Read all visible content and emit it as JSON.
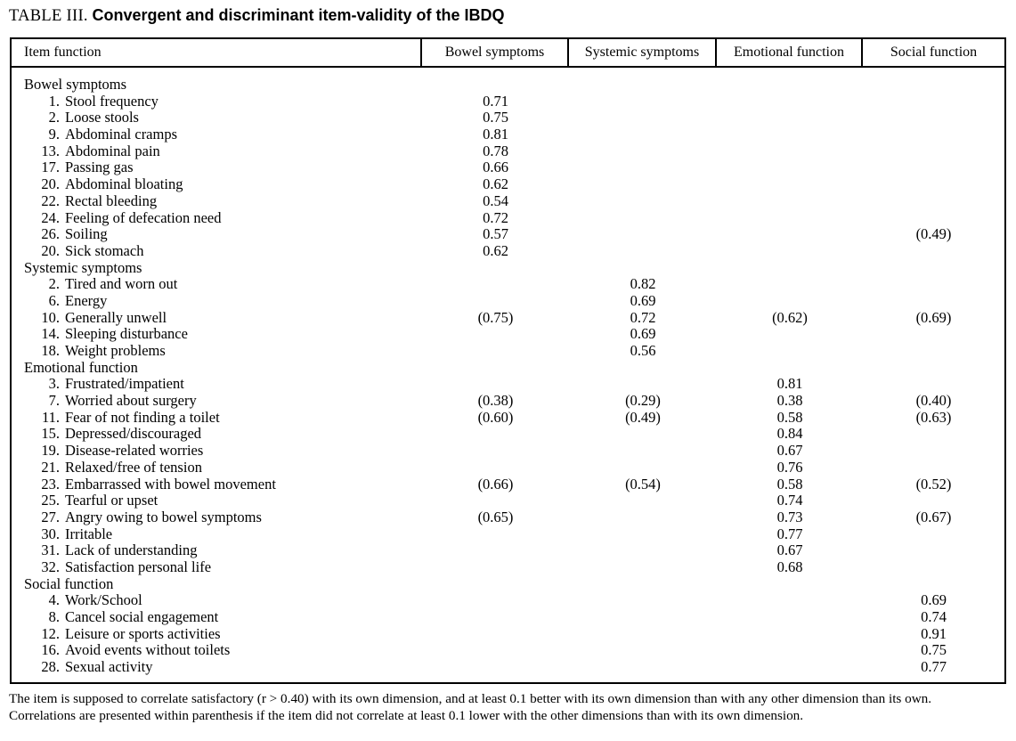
{
  "title": {
    "prefix": "TABLE III.",
    "main": "Convergent and discriminant item-validity of the IBDQ"
  },
  "table": {
    "columns": [
      "Item function",
      "Bowel symptoms",
      "Systemic symptoms",
      "Emotional function",
      "Social function"
    ],
    "rows": [
      {
        "type": "section",
        "label": "Bowel symptoms",
        "values": [
          "",
          "",
          "",
          ""
        ]
      },
      {
        "type": "item",
        "num": "1.",
        "label": "Stool frequency",
        "values": [
          "0.71",
          "",
          "",
          ""
        ]
      },
      {
        "type": "item",
        "num": "2.",
        "label": "Loose stools",
        "values": [
          "0.75",
          "",
          "",
          ""
        ]
      },
      {
        "type": "item",
        "num": "9.",
        "label": "Abdominal cramps",
        "values": [
          "0.81",
          "",
          "",
          ""
        ]
      },
      {
        "type": "item",
        "num": "13.",
        "label": "Abdominal pain",
        "values": [
          "0.78",
          "",
          "",
          ""
        ]
      },
      {
        "type": "item",
        "num": "17.",
        "label": "Passing gas",
        "values": [
          "0.66",
          "",
          "",
          ""
        ]
      },
      {
        "type": "item",
        "num": "20.",
        "label": "Abdominal bloating",
        "values": [
          "0.62",
          "",
          "",
          ""
        ]
      },
      {
        "type": "item",
        "num": "22.",
        "label": "Rectal bleeding",
        "values": [
          "0.54",
          "",
          "",
          ""
        ]
      },
      {
        "type": "item",
        "num": "24.",
        "label": "Feeling of defecation need",
        "values": [
          "0.72",
          "",
          "",
          ""
        ]
      },
      {
        "type": "item",
        "num": "26.",
        "label": "Soiling",
        "values": [
          "0.57",
          "",
          "",
          "(0.49)"
        ]
      },
      {
        "type": "item",
        "num": "20.",
        "label": "Sick stomach",
        "values": [
          "0.62",
          "",
          "",
          ""
        ]
      },
      {
        "type": "section",
        "label": "Systemic symptoms",
        "values": [
          "",
          "",
          "",
          ""
        ]
      },
      {
        "type": "item",
        "num": "2.",
        "label": "Tired and worn out",
        "values": [
          "",
          "0.82",
          "",
          ""
        ]
      },
      {
        "type": "item",
        "num": "6.",
        "label": "Energy",
        "values": [
          "",
          "0.69",
          "",
          ""
        ]
      },
      {
        "type": "item",
        "num": "10.",
        "label": "Generally unwell",
        "values": [
          "(0.75)",
          "0.72",
          "(0.62)",
          "(0.69)"
        ]
      },
      {
        "type": "item",
        "num": "14.",
        "label": "Sleeping disturbance",
        "values": [
          "",
          "0.69",
          "",
          ""
        ]
      },
      {
        "type": "item",
        "num": "18.",
        "label": "Weight problems",
        "values": [
          "",
          "0.56",
          "",
          ""
        ]
      },
      {
        "type": "section",
        "label": "Emotional function",
        "values": [
          "",
          "",
          "",
          ""
        ]
      },
      {
        "type": "item",
        "num": "3.",
        "label": "Frustrated/impatient",
        "values": [
          "",
          "",
          "0.81",
          ""
        ]
      },
      {
        "type": "item",
        "num": "7.",
        "label": "Worried about surgery",
        "values": [
          "(0.38)",
          "(0.29)",
          "0.38",
          "(0.40)"
        ]
      },
      {
        "type": "item",
        "num": "11.",
        "label": "Fear of not finding a toilet",
        "values": [
          "(0.60)",
          "(0.49)",
          "0.58",
          "(0.63)"
        ]
      },
      {
        "type": "item",
        "num": "15.",
        "label": "Depressed/discouraged",
        "values": [
          "",
          "",
          "0.84",
          ""
        ]
      },
      {
        "type": "item",
        "num": "19.",
        "label": "Disease-related worries",
        "values": [
          "",
          "",
          "0.67",
          ""
        ]
      },
      {
        "type": "item",
        "num": "21.",
        "label": "Relaxed/free of tension",
        "values": [
          "",
          "",
          "0.76",
          ""
        ]
      },
      {
        "type": "item",
        "num": "23.",
        "label": "Embarrassed with bowel movement",
        "values": [
          "(0.66)",
          "(0.54)",
          "0.58",
          "(0.52)"
        ]
      },
      {
        "type": "item",
        "num": "25.",
        "label": "Tearful or upset",
        "values": [
          "",
          "",
          "0.74",
          ""
        ]
      },
      {
        "type": "item",
        "num": "27.",
        "label": "Angry owing to bowel symptoms",
        "values": [
          "(0.65)",
          "",
          "0.73",
          "(0.67)"
        ]
      },
      {
        "type": "item",
        "num": "30.",
        "label": "Irritable",
        "values": [
          "",
          "",
          "0.77",
          ""
        ]
      },
      {
        "type": "item",
        "num": "31.",
        "label": "Lack of understanding",
        "values": [
          "",
          "",
          "0.67",
          ""
        ]
      },
      {
        "type": "item",
        "num": "32.",
        "label": "Satisfaction personal life",
        "values": [
          "",
          "",
          "0.68",
          ""
        ]
      },
      {
        "type": "section",
        "label": "Social function",
        "values": [
          "",
          "",
          "",
          ""
        ]
      },
      {
        "type": "item",
        "num": "4.",
        "label": "Work/School",
        "values": [
          "",
          "",
          "",
          "0.69"
        ]
      },
      {
        "type": "item",
        "num": "8.",
        "label": "Cancel social engagement",
        "values": [
          "",
          "",
          "",
          "0.74"
        ]
      },
      {
        "type": "item",
        "num": "12.",
        "label": "Leisure or sports activities",
        "values": [
          "",
          "",
          "",
          "0.91"
        ]
      },
      {
        "type": "item",
        "num": "16.",
        "label": "Avoid events without toilets",
        "values": [
          "",
          "",
          "",
          "0.75"
        ]
      },
      {
        "type": "item",
        "num": "28.",
        "label": "Sexual activity",
        "values": [
          "",
          "",
          "",
          "0.77"
        ]
      }
    ]
  },
  "footnote": {
    "line1": "The item is supposed to correlate satisfactory (r > 0.40) with its own dimension, and at least 0.1 better with its own dimension than with any other dimension than its own.",
    "line2": "Correlations are presented within parenthesis if the item did not correlate at least 0.1 lower with the other dimensions than with its own dimension."
  }
}
